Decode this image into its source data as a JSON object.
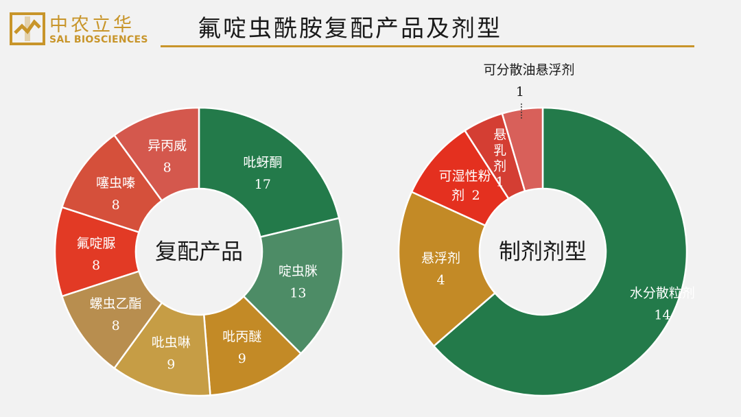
{
  "logo": {
    "cn": "中农立华",
    "en": "SAL BIOSCIENCES"
  },
  "title": "氟啶虫酰胺复配产品及剂型",
  "colors": {
    "gold": "#c8952a",
    "background": "#f2f2f2"
  },
  "chart_data": [
    {
      "type": "pie",
      "center_label": "复配产品",
      "categories": [
        "吡蚜酮",
        "啶虫脒",
        "吡丙醚",
        "吡虫啉",
        "螺虫乙酯",
        "氟啶脲",
        "噻虫嗪",
        "异丙威"
      ],
      "values": [
        17,
        13,
        9,
        9,
        8,
        8,
        8,
        8
      ],
      "value_labels": [
        "17",
        "13",
        "9",
        "9",
        "8",
        "8",
        "8",
        "8"
      ],
      "colors": [
        "#237a4a",
        "#4d8c66",
        "#c38a26",
        "#c69d45",
        "#b88e4f",
        "#e23a25",
        "#d5503b",
        "#d4584d"
      ]
    },
    {
      "type": "pie",
      "center_label": "制剂剂型",
      "categories": [
        "水分散粒剂",
        "悬浮剂",
        "可湿性粉剂",
        "悬乳剂",
        "可分散油悬浮剂"
      ],
      "values": [
        14,
        4,
        2,
        1,
        1
      ],
      "value_labels": [
        "14",
        "4",
        "2",
        "1",
        "1"
      ],
      "colors": [
        "#237a4a",
        "#c38a26",
        "#e4301f",
        "#d43e33",
        "#d8605a"
      ]
    }
  ]
}
